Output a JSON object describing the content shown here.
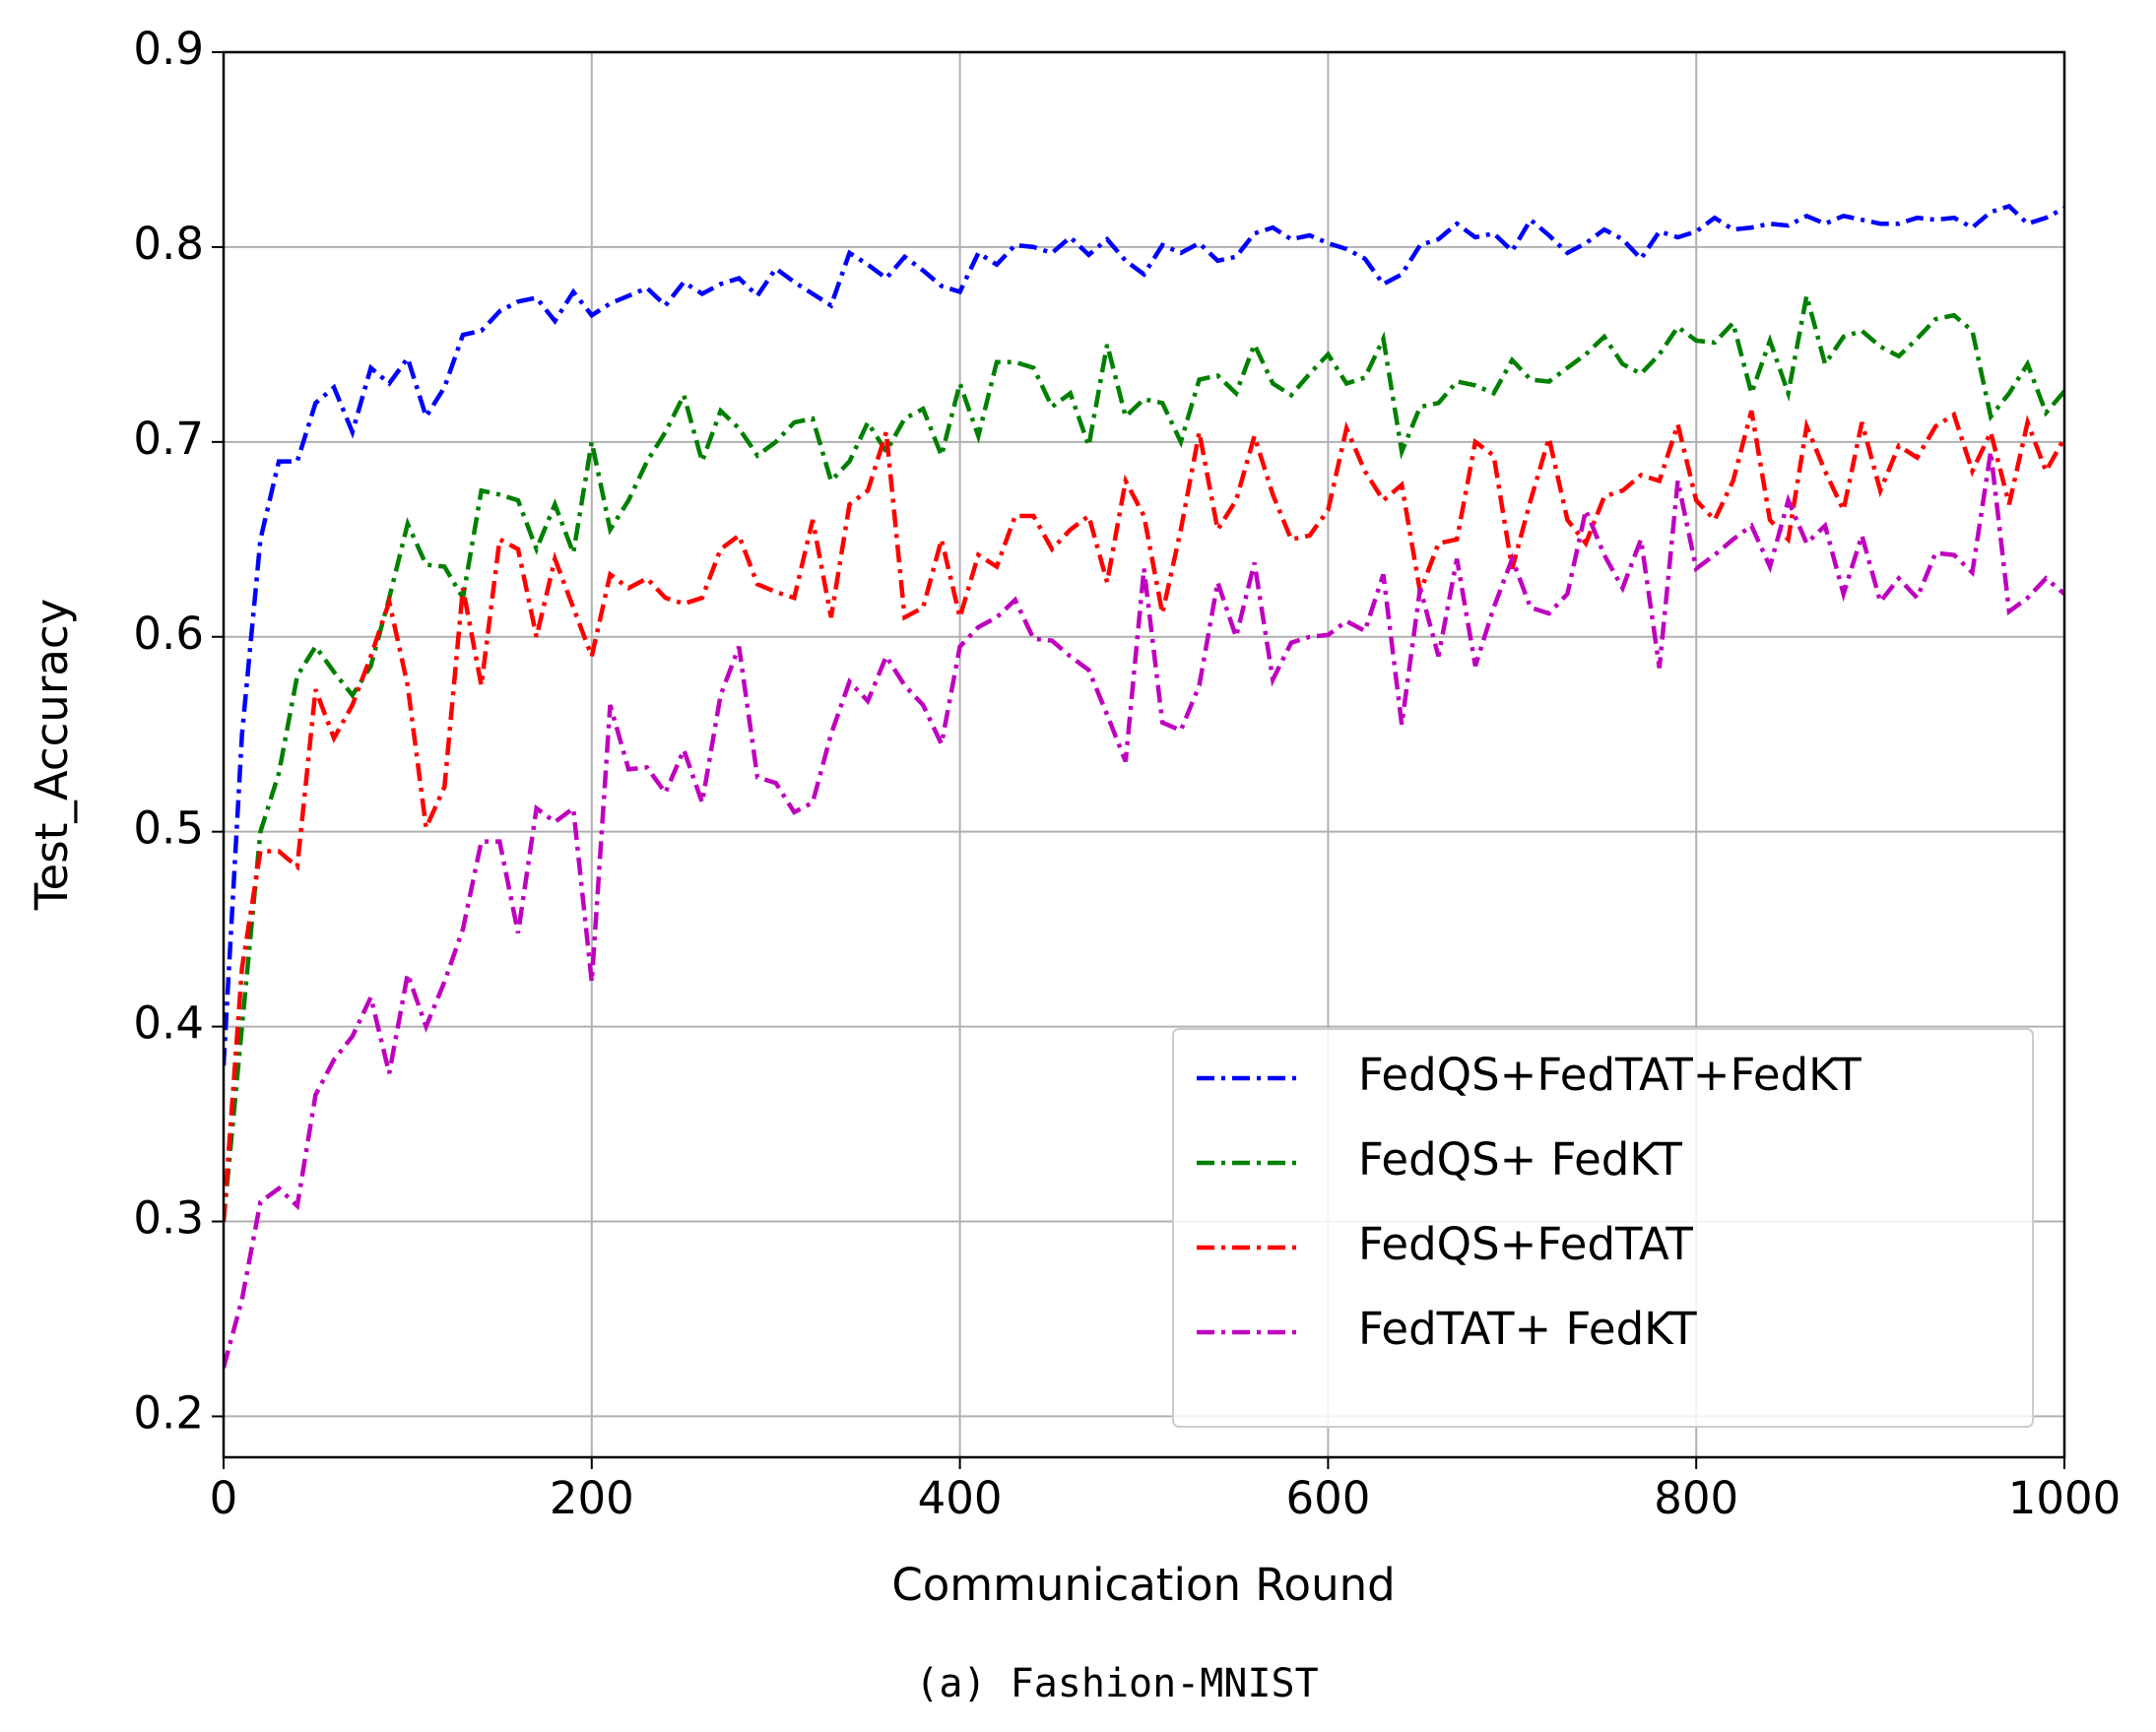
{
  "chart_data": {
    "type": "line",
    "xlabel": "Communication Round",
    "ylabel": "Test_Accuracy",
    "caption": "(a) Fashion-MNIST",
    "x": [
      0,
      10,
      20,
      30,
      40,
      50,
      60,
      70,
      80,
      90,
      100,
      110,
      120,
      130,
      140,
      150,
      160,
      170,
      180,
      190,
      200,
      210,
      220,
      230,
      240,
      250,
      260,
      270,
      280,
      290,
      300,
      310,
      320,
      330,
      340,
      350,
      360,
      370,
      380,
      390,
      400,
      410,
      420,
      430,
      440,
      450,
      460,
      470,
      480,
      490,
      500,
      510,
      520,
      530,
      540,
      550,
      560,
      570,
      580,
      590,
      600,
      610,
      620,
      630,
      640,
      650,
      660,
      670,
      680,
      690,
      700,
      710,
      720,
      730,
      740,
      750,
      760,
      770,
      780,
      790,
      800,
      810,
      820,
      830,
      840,
      850,
      860,
      870,
      880,
      890,
      900,
      910,
      920,
      930,
      940,
      950,
      960,
      970,
      980,
      990,
      1000
    ],
    "series": [
      {
        "name": "FedQS+FedTAT+FedKT",
        "color": "#0000ff",
        "values": [
          0.38,
          0.55,
          0.65,
          0.69,
          0.69,
          0.72,
          0.728,
          0.705,
          0.738,
          0.73,
          0.743,
          0.713,
          0.728,
          0.755,
          0.757,
          0.767,
          0.772,
          0.774,
          0.762,
          0.777,
          0.765,
          0.771,
          0.775,
          0.779,
          0.77,
          0.782,
          0.776,
          0.781,
          0.784,
          0.775,
          0.789,
          0.782,
          0.776,
          0.77,
          0.797,
          0.791,
          0.784,
          0.795,
          0.788,
          0.78,
          0.777,
          0.797,
          0.791,
          0.801,
          0.8,
          0.797,
          0.805,
          0.796,
          0.804,
          0.793,
          0.786,
          0.801,
          0.797,
          0.802,
          0.793,
          0.795,
          0.807,
          0.81,
          0.804,
          0.806,
          0.802,
          0.799,
          0.794,
          0.781,
          0.786,
          0.801,
          0.804,
          0.812,
          0.805,
          0.807,
          0.798,
          0.814,
          0.806,
          0.797,
          0.802,
          0.809,
          0.804,
          0.794,
          0.808,
          0.805,
          0.808,
          0.815,
          0.809,
          0.81,
          0.812,
          0.811,
          0.816,
          0.812,
          0.816,
          0.814,
          0.812,
          0.812,
          0.815,
          0.814,
          0.815,
          0.81,
          0.818,
          0.821,
          0.812,
          0.815,
          0.82
        ]
      },
      {
        "name": "FedQS+ FedKT",
        "color": "#008000",
        "values": [
          0.3,
          0.4,
          0.5,
          0.53,
          0.58,
          0.595,
          0.582,
          0.57,
          0.585,
          0.62,
          0.658,
          0.637,
          0.636,
          0.62,
          0.675,
          0.673,
          0.67,
          0.645,
          0.668,
          0.643,
          0.7,
          0.655,
          0.67,
          0.69,
          0.705,
          0.724,
          0.69,
          0.716,
          0.707,
          0.693,
          0.7,
          0.71,
          0.712,
          0.68,
          0.69,
          0.71,
          0.695,
          0.712,
          0.717,
          0.693,
          0.73,
          0.703,
          0.741,
          0.741,
          0.738,
          0.718,
          0.725,
          0.698,
          0.75,
          0.713,
          0.722,
          0.72,
          0.7,
          0.732,
          0.734,
          0.725,
          0.75,
          0.73,
          0.724,
          0.735,
          0.745,
          0.73,
          0.733,
          0.753,
          0.695,
          0.718,
          0.72,
          0.731,
          0.729,
          0.725,
          0.742,
          0.732,
          0.731,
          0.738,
          0.745,
          0.754,
          0.74,
          0.735,
          0.745,
          0.759,
          0.752,
          0.751,
          0.761,
          0.725,
          0.752,
          0.725,
          0.775,
          0.74,
          0.754,
          0.757,
          0.749,
          0.744,
          0.753,
          0.763,
          0.765,
          0.757,
          0.713,
          0.725,
          0.74,
          0.715,
          0.726
        ]
      },
      {
        "name": "FedQS+FedTAT",
        "color": "#ff0000",
        "values": [
          0.3,
          0.43,
          0.49,
          0.49,
          0.482,
          0.573,
          0.548,
          0.565,
          0.59,
          0.618,
          0.575,
          0.502,
          0.523,
          0.625,
          0.575,
          0.65,
          0.645,
          0.6,
          0.64,
          0.615,
          0.59,
          0.632,
          0.625,
          0.63,
          0.62,
          0.617,
          0.62,
          0.645,
          0.652,
          0.627,
          0.623,
          0.62,
          0.66,
          0.61,
          0.668,
          0.675,
          0.705,
          0.61,
          0.615,
          0.65,
          0.61,
          0.642,
          0.636,
          0.662,
          0.662,
          0.645,
          0.655,
          0.662,
          0.628,
          0.68,
          0.662,
          0.612,
          0.655,
          0.705,
          0.655,
          0.67,
          0.703,
          0.673,
          0.65,
          0.652,
          0.665,
          0.707,
          0.685,
          0.67,
          0.678,
          0.623,
          0.648,
          0.65,
          0.7,
          0.693,
          0.635,
          0.67,
          0.702,
          0.66,
          0.648,
          0.672,
          0.675,
          0.683,
          0.68,
          0.709,
          0.67,
          0.66,
          0.68,
          0.716,
          0.66,
          0.65,
          0.708,
          0.685,
          0.665,
          0.71,
          0.675,
          0.698,
          0.692,
          0.708,
          0.714,
          0.685,
          0.705,
          0.668,
          0.71,
          0.685,
          0.702
        ]
      },
      {
        "name": "FedTAT+ FedKT",
        "color": "#bf00bf",
        "values": [
          0.225,
          0.26,
          0.31,
          0.317,
          0.308,
          0.365,
          0.383,
          0.395,
          0.415,
          0.376,
          0.427,
          0.4,
          0.423,
          0.45,
          0.495,
          0.495,
          0.448,
          0.512,
          0.505,
          0.512,
          0.423,
          0.565,
          0.532,
          0.533,
          0.52,
          0.542,
          0.515,
          0.57,
          0.595,
          0.528,
          0.525,
          0.51,
          0.515,
          0.55,
          0.577,
          0.567,
          0.59,
          0.575,
          0.565,
          0.545,
          0.595,
          0.605,
          0.61,
          0.619,
          0.599,
          0.598,
          0.59,
          0.583,
          0.56,
          0.536,
          0.635,
          0.556,
          0.552,
          0.575,
          0.628,
          0.6,
          0.638,
          0.578,
          0.597,
          0.6,
          0.601,
          0.608,
          0.603,
          0.632,
          0.555,
          0.625,
          0.59,
          0.64,
          0.585,
          0.615,
          0.64,
          0.615,
          0.612,
          0.622,
          0.665,
          0.642,
          0.625,
          0.65,
          0.584,
          0.68,
          0.635,
          0.642,
          0.65,
          0.657,
          0.636,
          0.67,
          0.648,
          0.657,
          0.622,
          0.652,
          0.618,
          0.63,
          0.62,
          0.643,
          0.642,
          0.633,
          0.695,
          0.613,
          0.62,
          0.63,
          0.622
        ]
      }
    ],
    "xlim": [
      0,
      1000
    ],
    "xticks": [
      0,
      200,
      400,
      600,
      800,
      1000
    ],
    "ylim": [
      0.179,
      0.9
    ],
    "yticks": [
      0.2,
      0.3,
      0.4,
      0.5,
      0.6,
      0.7,
      0.8,
      0.9
    ],
    "grid": true,
    "legend": "lower right"
  }
}
